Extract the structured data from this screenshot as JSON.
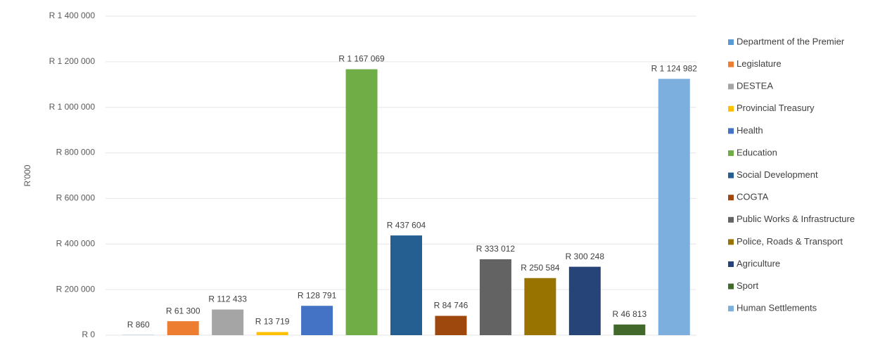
{
  "chart_data": {
    "type": "bar",
    "y_label": "R'000",
    "categories": [
      "Department of the Premier",
      "Legislature",
      "DESTEA",
      "Provincial Treasury",
      "Health",
      "Education",
      "Social Development",
      "COGTA",
      "Public Works & Infrastructure",
      "Police, Roads & Transport",
      "Agriculture",
      "Sport",
      "Human Settlements"
    ],
    "values": [
      860,
      61300,
      112433,
      13719,
      128791,
      1167069,
      437604,
      84746,
      333012,
      250584,
      300248,
      46813,
      1124982
    ],
    "value_labels": [
      "R 860",
      "R 61 300",
      "R 112 433",
      "R 13 719",
      "R 128 791",
      "R 1 167 069",
      "R 437 604",
      "R 84 746",
      "R 333 012",
      "R 250 584",
      "R 300 248",
      "R 46 813",
      "R 1 124 982"
    ],
    "colors": [
      "#5b9bd5",
      "#ed7d31",
      "#a5a5a5",
      "#ffc000",
      "#4472c4",
      "#70ad47",
      "#255e91",
      "#9e480e",
      "#636363",
      "#997300",
      "#264478",
      "#43682b",
      "#7cafdd"
    ],
    "ylim": [
      0,
      1400000
    ],
    "yticks": [
      {
        "value": 0,
        "label": "R 0"
      },
      {
        "value": 200000,
        "label": "R 200 000"
      },
      {
        "value": 400000,
        "label": "R 400 000"
      },
      {
        "value": 600000,
        "label": "R 600 000"
      },
      {
        "value": 800000,
        "label": "R 800 000"
      },
      {
        "value": 1000000,
        "label": "R 1 000 000"
      },
      {
        "value": 1200000,
        "label": "R 1 200 000"
      },
      {
        "value": 1400000,
        "label": "R 1 400 000"
      }
    ],
    "grid": true,
    "legend": "right"
  }
}
